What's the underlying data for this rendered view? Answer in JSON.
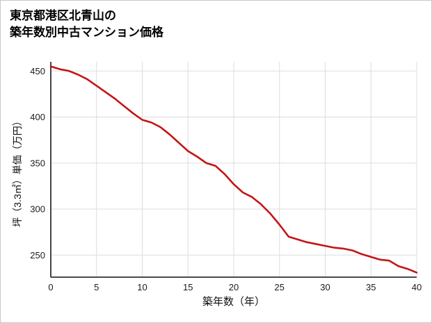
{
  "title": {
    "line1": "東京都港区北青山の",
    "line2": "築年数別中古マンション価格"
  },
  "chart_data": {
    "type": "line",
    "title": "東京都港区北青山の築年数別中古マンション価格",
    "xlabel": "築年数（年）",
    "ylabel": "坪（3.3㎡）単価（万円）",
    "x": [
      0,
      1,
      2,
      3,
      4,
      5,
      6,
      7,
      8,
      9,
      10,
      11,
      12,
      13,
      14,
      15,
      16,
      17,
      18,
      19,
      20,
      21,
      22,
      23,
      24,
      25,
      26,
      27,
      28,
      29,
      30,
      31,
      32,
      33,
      34,
      35,
      36,
      37,
      38,
      39,
      40
    ],
    "values": [
      455,
      452,
      450,
      446,
      441,
      434,
      427,
      420,
      412,
      404,
      397,
      394,
      389,
      381,
      372,
      363,
      357,
      350,
      347,
      338,
      327,
      318,
      313,
      305,
      295,
      283,
      270,
      267,
      264,
      262,
      260,
      258,
      257,
      255,
      251,
      248,
      245,
      244,
      238,
      235,
      231
    ],
    "xlim": [
      0,
      40
    ],
    "ylim": [
      226,
      460
    ],
    "xticks": [
      0,
      5,
      10,
      15,
      20,
      25,
      30,
      35,
      40
    ],
    "yticks": [
      250,
      300,
      350,
      400,
      450
    ],
    "grid": true,
    "line_color": "#c31515",
    "grid_color": "#dddddd",
    "axis_color": "#2f2f2f",
    "tick_color": "#1a1a1a"
  }
}
